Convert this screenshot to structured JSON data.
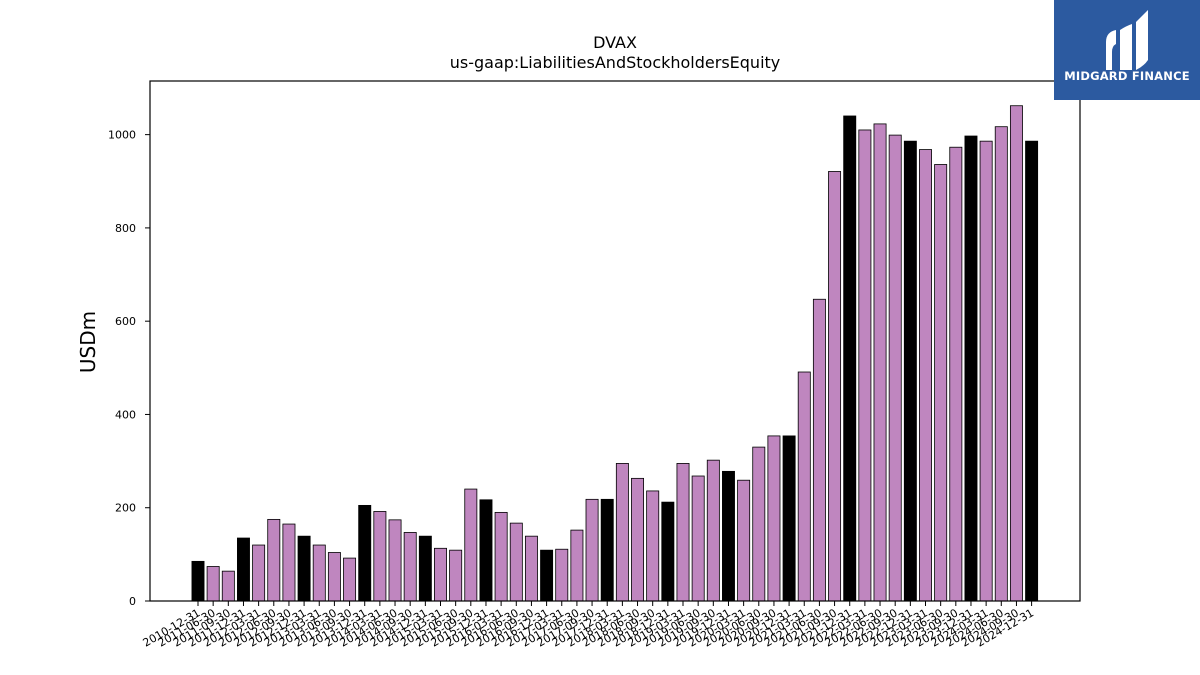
{
  "logo": {
    "text": "MIDGARD FINANCE"
  },
  "colors": {
    "annual": "#000000",
    "quarterly": "#bf86bf",
    "edge": "#000000",
    "logo_bg": "#2c5aa0"
  },
  "chart_data": {
    "type": "bar",
    "title": "DVAX",
    "subtitle": "us-gaap:LiabilitiesAndStockholdersEquity",
    "ylabel": "USDm",
    "xlabel": "",
    "ylim": [
      0,
      1115
    ],
    "yticks": [
      0,
      200,
      400,
      600,
      800,
      1000
    ],
    "grid": false,
    "categories": [
      "2010-12-31",
      "2011-06-30",
      "2011-09-30",
      "2011-12-31",
      "2012-03-31",
      "2012-06-30",
      "2012-09-30",
      "2012-12-31",
      "2013-03-31",
      "2013-06-30",
      "2013-09-30",
      "2013-12-31",
      "2014-03-31",
      "2014-06-30",
      "2014-09-30",
      "2014-12-31",
      "2015-03-31",
      "2015-06-30",
      "2015-09-30",
      "2015-12-31",
      "2016-03-31",
      "2016-06-30",
      "2016-09-30",
      "2016-12-31",
      "2017-03-31",
      "2017-06-30",
      "2017-09-30",
      "2017-12-31",
      "2018-03-31",
      "2018-06-30",
      "2018-09-30",
      "2018-12-31",
      "2019-03-31",
      "2019-06-30",
      "2019-09-30",
      "2019-12-31",
      "2020-03-31",
      "2020-06-30",
      "2020-09-30",
      "2020-12-31",
      "2021-03-31",
      "2021-06-30",
      "2021-09-30",
      "2021-12-31",
      "2022-03-31",
      "2022-06-30",
      "2022-09-30",
      "2022-12-31",
      "2023-03-31",
      "2023-06-30",
      "2023-09-30",
      "2023-12-31",
      "2024-03-31",
      "2024-06-30",
      "2024-09-30",
      "2024-12-31"
    ],
    "values": [
      85,
      74,
      64,
      135,
      120,
      175,
      165,
      139,
      120,
      104,
      92,
      205,
      192,
      174,
      147,
      139,
      113,
      109,
      240,
      217,
      190,
      167,
      139,
      109,
      111,
      152,
      218,
      218,
      295,
      263,
      236,
      212,
      295,
      268,
      302,
      278,
      259,
      330,
      354,
      354,
      491,
      647,
      921,
      1040,
      1010,
      1023,
      999,
      986,
      968,
      936,
      973,
      997,
      986,
      1017,
      1062,
      986
    ],
    "annual_flags": [
      1,
      0,
      0,
      1,
      0,
      0,
      0,
      1,
      0,
      0,
      0,
      1,
      0,
      0,
      0,
      1,
      0,
      0,
      0,
      1,
      0,
      0,
      0,
      1,
      0,
      0,
      0,
      1,
      0,
      0,
      0,
      1,
      0,
      0,
      0,
      1,
      0,
      0,
      0,
      1,
      0,
      0,
      0,
      1,
      0,
      0,
      0,
      1,
      0,
      0,
      0,
      1,
      0,
      0,
      0,
      1
    ]
  }
}
